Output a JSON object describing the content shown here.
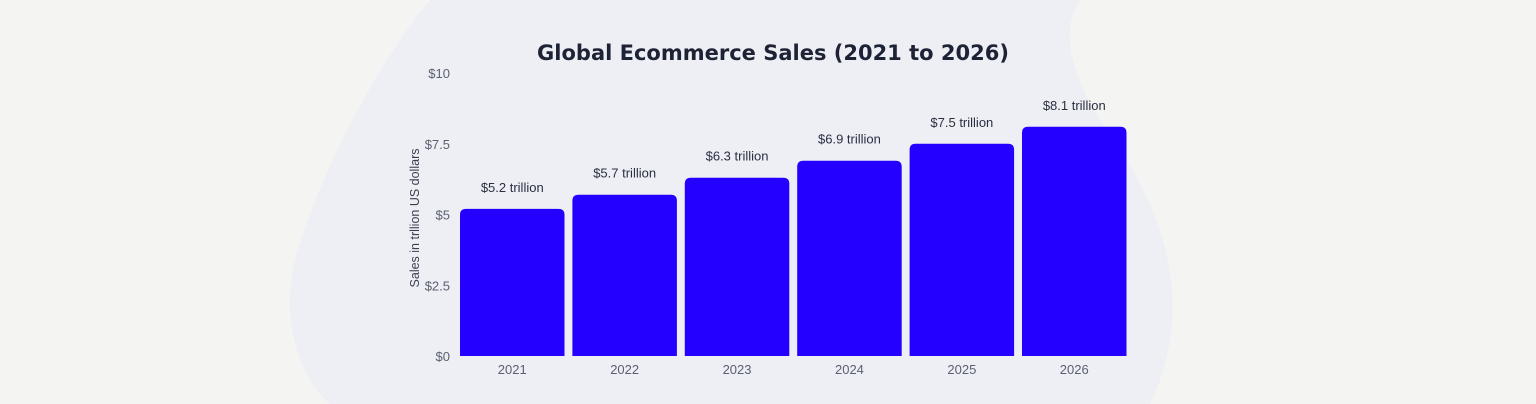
{
  "chart_data": {
    "type": "bar",
    "title": "Global Ecommerce Sales (2021 to 2026)",
    "xlabel": "",
    "ylabel": "Sales in trllion US dollars",
    "categories": [
      "2021",
      "2022",
      "2023",
      "2024",
      "2025",
      "2026"
    ],
    "values": [
      5.2,
      5.7,
      6.3,
      6.9,
      7.5,
      8.1
    ],
    "data_labels": [
      "$5.2 trillion",
      "$5.7 trillion",
      "$6.3 trillion",
      "$6.9 trillion",
      "$7.5 trillion",
      "$8.1 trillion"
    ],
    "yticks": [
      0,
      2.5,
      5,
      7.5,
      10
    ],
    "ytick_labels": [
      "$0",
      "$2.5",
      "$5",
      "$7.5",
      "$10"
    ],
    "ylim": [
      0,
      10
    ],
    "grid": false,
    "legend": "none",
    "bar_color": "#2400ff"
  }
}
